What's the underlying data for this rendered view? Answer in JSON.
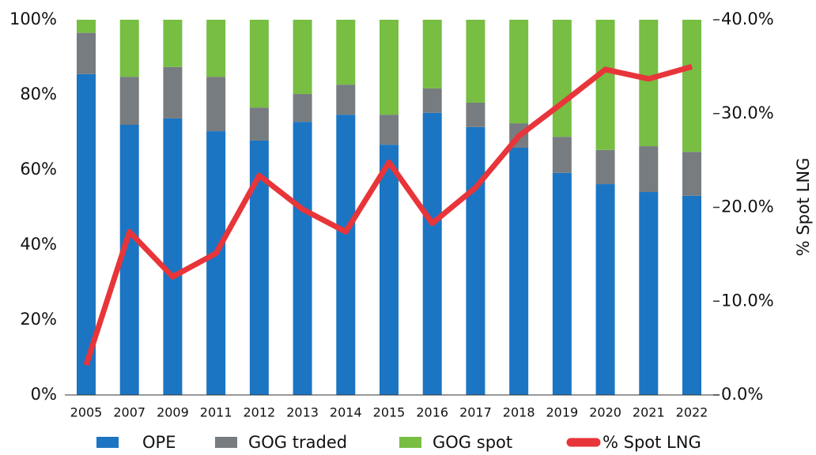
{
  "chart_data": {
    "type": "bar",
    "stacked": true,
    "categories": [
      "2005",
      "2007",
      "2009",
      "2011",
      "2012",
      "2013",
      "2014",
      "2015",
      "2016",
      "2017",
      "2018",
      "2019",
      "2020",
      "2021",
      "2022"
    ],
    "series": [
      {
        "name": "OPE",
        "color": "#1b75c3",
        "values": [
          85.5,
          72,
          73.7,
          70.3,
          67.8,
          72.8,
          74.7,
          66.7,
          75.2,
          71.4,
          65.9,
          59.2,
          56.2,
          54.1,
          53.1
        ]
      },
      {
        "name": "GOG traded",
        "color": "#777c80",
        "values": [
          11,
          12.8,
          13.7,
          14.5,
          8.8,
          7.4,
          8,
          8,
          6.5,
          6.5,
          6.5,
          9.6,
          9.1,
          12.2,
          11.7
        ]
      },
      {
        "name": "GOG spot",
        "color": "#77be43",
        "values": [
          3.5,
          15.2,
          12.6,
          15.2,
          23.4,
          19.8,
          17.3,
          25.3,
          18.3,
          22.1,
          27.6,
          31.2,
          34.7,
          33.7,
          35.2
        ]
      },
      {
        "name": "% Spot LNG",
        "color": "#e8353a",
        "type": "line",
        "axis": "y2",
        "values": [
          3.2,
          17.4,
          12.6,
          15.1,
          23.4,
          19.8,
          17.4,
          24.8,
          18.3,
          22.1,
          27.6,
          31.1,
          34.7,
          33.7,
          35
        ]
      }
    ],
    "ylim": [
      0,
      100
    ],
    "yticks": [
      {
        "value": 0,
        "label": "0%"
      },
      {
        "value": 20,
        "label": "20%"
      },
      {
        "value": 40,
        "label": "40%"
      },
      {
        "value": 60,
        "label": "60%"
      },
      {
        "value": 80,
        "label": "80%"
      },
      {
        "value": 100,
        "label": "100%"
      }
    ],
    "y2lim": [
      0,
      40
    ],
    "y2ticks": [
      {
        "value": 0,
        "label": "0.0%"
      },
      {
        "value": 10,
        "label": "10.0%"
      },
      {
        "value": 20,
        "label": "20.0%"
      },
      {
        "value": 30,
        "label": "30.0%"
      },
      {
        "value": 40,
        "label": "40.0%"
      }
    ],
    "y2label": "% Spot LNG",
    "legend": "bottom"
  }
}
